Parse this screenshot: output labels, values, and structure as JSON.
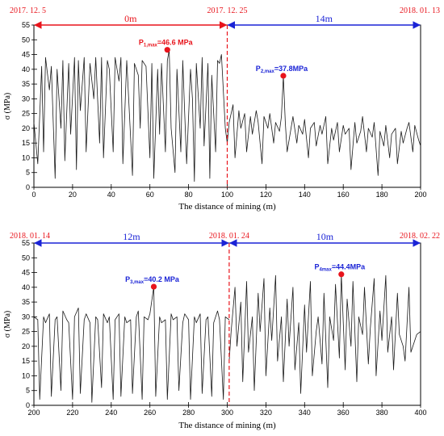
{
  "colors": {
    "red": "#e8141c",
    "blue": "#1a23d6",
    "trace": "#1a1a1a"
  },
  "chart_data": [
    {
      "type": "line",
      "xlabel": "The distance of mining (m)",
      "ylabel": "σ (MPa)",
      "xlim": [
        0,
        200
      ],
      "ylim": [
        0,
        55
      ],
      "xticks": [
        0,
        20,
        40,
        60,
        80,
        100,
        120,
        140,
        160,
        180,
        200
      ],
      "yticks": [
        0,
        5,
        10,
        15,
        20,
        25,
        30,
        35,
        40,
        45,
        50,
        55
      ],
      "boundary_x": 100,
      "dates": [
        {
          "x": 0,
          "text": "2017. 12. 5",
          "color": "red"
        },
        {
          "x": 100,
          "text": "2017. 12. 25",
          "color": "red"
        },
        {
          "x": 200,
          "text": "2018. 01. 13",
          "color": "red"
        }
      ],
      "segments": [
        {
          "from": 0,
          "to": 100,
          "label": "0m",
          "color": "red"
        },
        {
          "from": 100,
          "to": 200,
          "label": "14m",
          "color": "blue"
        }
      ],
      "peaks": [
        {
          "x": 69,
          "y": 46.6,
          "name": "P",
          "sub": "1,max",
          "value": "=46.6 MPa",
          "color": "red"
        },
        {
          "x": 129,
          "y": 37.8,
          "name": "P",
          "sub": "2,max",
          "value": "=37.8MPa",
          "color": "blue"
        }
      ],
      "series": [
        {
          "x": [
            0,
            2,
            4,
            5,
            6,
            8,
            9,
            11,
            12,
            14,
            15,
            16,
            18,
            19,
            21,
            22,
            23,
            24,
            26,
            27,
            29,
            31,
            32,
            34,
            35,
            36,
            38,
            39,
            41,
            42,
            44,
            45,
            46,
            48,
            49,
            51,
            52,
            54,
            55,
            56,
            58,
            60,
            61,
            62,
            64,
            65,
            66,
            68,
            69,
            70,
            71,
            73,
            74,
            76,
            77,
            78,
            79,
            81,
            82,
            83,
            84,
            86,
            87,
            88,
            90,
            91,
            92,
            94,
            95,
            96,
            97,
            99,
            100
          ],
          "y": [
            22,
            8,
            41,
            12,
            44,
            33,
            41,
            3,
            40,
            20,
            43,
            9,
            42,
            18,
            44,
            6,
            43,
            26,
            44,
            12,
            42,
            30,
            44,
            15,
            44,
            10,
            43,
            40,
            12,
            44,
            36,
            44,
            8,
            43,
            30,
            4,
            42,
            38,
            20,
            43,
            41,
            10,
            42,
            3,
            40,
            18,
            42,
            12,
            43,
            46.6,
            20,
            5,
            40,
            12,
            43,
            25,
            8,
            40,
            30,
            2,
            42,
            20,
            44,
            14,
            42,
            3,
            38,
            12,
            43,
            42,
            45,
            20,
            15
          ]
        },
        {
          "x": [
            100,
            101,
            103,
            104,
            106,
            107,
            109,
            110,
            112,
            113,
            115,
            116,
            118,
            119,
            121,
            122,
            124,
            125,
            127,
            128,
            129,
            130,
            131,
            133,
            134,
            136,
            137,
            139,
            140,
            142,
            143,
            145,
            146,
            148,
            149,
            151,
            152,
            154,
            155,
            157,
            158,
            160,
            161,
            163,
            164,
            166,
            167,
            169,
            170,
            172,
            173,
            175,
            176,
            178,
            179,
            181,
            182,
            184,
            185,
            187,
            188,
            190,
            191,
            193,
            194,
            196,
            197,
            199,
            200
          ],
          "y": [
            15,
            22,
            28,
            10,
            26,
            20,
            25,
            12,
            24,
            18,
            26,
            22,
            8,
            24,
            20,
            25,
            15,
            22,
            19,
            24,
            37.8,
            22,
            12,
            20,
            24,
            15,
            21,
            18,
            23,
            10,
            20,
            22,
            14,
            21,
            18,
            24,
            8,
            20,
            16,
            22,
            12,
            21,
            18,
            20,
            6,
            22,
            15,
            19,
            24,
            12,
            20,
            17,
            22,
            4,
            19,
            14,
            21,
            10,
            18,
            20,
            8,
            19,
            15,
            20,
            22,
            12,
            21,
            16,
            14
          ]
        }
      ]
    },
    {
      "type": "line",
      "xlabel": "The distance of mining (m)",
      "ylabel": "σ (MPa)",
      "xlim": [
        200,
        400
      ],
      "ylim": [
        0,
        55
      ],
      "xticks": [
        200,
        220,
        240,
        260,
        280,
        300,
        320,
        340,
        360,
        380,
        400
      ],
      "yticks": [
        0,
        5,
        10,
        15,
        20,
        25,
        30,
        35,
        40,
        45,
        50,
        55
      ],
      "boundary_x": 301,
      "dates": [
        {
          "x": 200,
          "text": "2018. 01. 14",
          "color": "red"
        },
        {
          "x": 301,
          "text": "2018. 01. 24",
          "color": "red"
        },
        {
          "x": 400,
          "text": "2018. 02. 22",
          "color": "red"
        }
      ],
      "segments": [
        {
          "from": 200,
          "to": 301,
          "label": "12m",
          "color": "blue"
        },
        {
          "from": 301,
          "to": 400,
          "label": "10m",
          "color": "blue"
        }
      ],
      "peaks": [
        {
          "x": 262,
          "y": 40.2,
          "name": "P",
          "sub": "3,max",
          "value": "=40.2 MPa",
          "color": "blue"
        },
        {
          "x": 359,
          "y": 44.4,
          "name": "P",
          "sub": "4max",
          "value": "=44.4MPa",
          "color": "blue"
        }
      ],
      "series": [
        {
          "x": [
            200,
            202,
            203,
            205,
            206,
            208,
            209,
            211,
            212,
            214,
            215,
            217,
            218,
            220,
            221,
            223,
            224,
            226,
            227,
            229,
            230,
            232,
            233,
            235,
            236,
            238,
            239,
            241,
            242,
            244,
            245,
            247,
            248,
            250,
            251,
            253,
            254,
            256,
            257,
            259,
            260,
            262,
            263,
            265,
            266,
            268,
            269,
            271,
            272,
            274,
            275,
            277,
            278,
            280,
            281,
            283,
            284,
            286,
            287,
            289,
            290,
            292,
            293,
            295,
            296,
            298,
            299,
            301
          ],
          "y": [
            30,
            29,
            2,
            30,
            28,
            31,
            3,
            29,
            30,
            5,
            32,
            29,
            28,
            2,
            30,
            33,
            4,
            29,
            31,
            28,
            1,
            30,
            29,
            6,
            31,
            28,
            30,
            2,
            29,
            31,
            3,
            30,
            28,
            29,
            4,
            30,
            32,
            2,
            30,
            29,
            31,
            40.2,
            3,
            30,
            28,
            29,
            2,
            31,
            29,
            30,
            5,
            28,
            31,
            29,
            2,
            30,
            28,
            31,
            4,
            29,
            30,
            3,
            28,
            32,
            29,
            2,
            30,
            29
          ]
        },
        {
          "x": [
            301,
            302,
            304,
            305,
            307,
            308,
            310,
            311,
            313,
            314,
            316,
            317,
            319,
            320,
            322,
            323,
            325,
            326,
            328,
            329,
            331,
            332,
            334,
            335,
            337,
            338,
            340,
            341,
            343,
            344,
            346,
            347,
            349,
            350,
            352,
            353,
            355,
            356,
            358,
            359,
            361,
            362,
            364,
            365,
            367,
            368,
            370,
            371,
            373,
            374,
            376,
            377,
            379,
            380,
            382,
            383,
            385,
            386,
            388,
            389,
            391,
            392,
            394,
            395,
            397,
            398,
            400
          ],
          "y": [
            15,
            25,
            40,
            20,
            35,
            8,
            42,
            18,
            30,
            5,
            38,
            25,
            43,
            10,
            33,
            22,
            44,
            15,
            30,
            8,
            36,
            20,
            40,
            12,
            28,
            4,
            34,
            18,
            42,
            10,
            25,
            30,
            14,
            38,
            6,
            30,
            22,
            41,
            16,
            44.4,
            12,
            36,
            20,
            42,
            8,
            30,
            24,
            40,
            14,
            26,
            43,
            10,
            32,
            22,
            44,
            18,
            30,
            12,
            38,
            24,
            20,
            15,
            40,
            18,
            22,
            24,
            25
          ]
        }
      ]
    }
  ]
}
